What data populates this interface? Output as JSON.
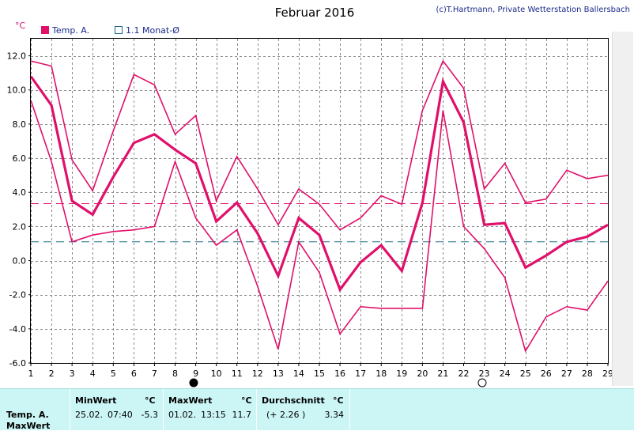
{
  "header": {
    "title": "Februar 2016",
    "copyright": "(c)T.Hartmann, Private Wetterstation Ballersbach",
    "unit": "°C"
  },
  "legend": {
    "items": [
      {
        "label": "Temp. A.",
        "color": "#e0106a",
        "marker": "filled-square"
      },
      {
        "label": "1.1 Monat-Ø",
        "color": "#1a6a8a",
        "marker": "hollow-square"
      }
    ]
  },
  "chart_data": {
    "type": "line",
    "title": "Februar 2016",
    "ylabel": "°C",
    "x": [
      1,
      2,
      3,
      4,
      5,
      6,
      7,
      8,
      9,
      10,
      11,
      12,
      13,
      14,
      15,
      16,
      17,
      18,
      19,
      20,
      21,
      22,
      23,
      24,
      25,
      26,
      27,
      28,
      29
    ],
    "xlim": [
      1,
      29
    ],
    "ylim": [
      -6,
      13
    ],
    "yticks": [
      -6.0,
      -4.0,
      -2.0,
      0.0,
      2.0,
      4.0,
      6.0,
      8.0,
      10.0,
      12.0
    ],
    "ytick_labels": [
      "-6.0",
      "-4.0",
      "-2.0",
      "0.0",
      "2.0",
      "4.0",
      "6.0",
      "8.0",
      "10.0",
      "12.0"
    ],
    "grid": true,
    "series": [
      {
        "kind": "max",
        "color": "#e0106a",
        "values": [
          11.7,
          11.4,
          5.9,
          4.1,
          7.6,
          10.9,
          10.3,
          7.4,
          8.5,
          3.5,
          6.1,
          4.2,
          2.1,
          4.2,
          3.3,
          1.8,
          2.5,
          3.8,
          3.3,
          8.8,
          11.7,
          10.1,
          4.2,
          5.7,
          3.4,
          3.6,
          5.3,
          4.8,
          5.0
        ]
      },
      {
        "name": "Temp. A.",
        "kind": "avg",
        "color": "#e0106a",
        "values": [
          10.8,
          9.1,
          3.5,
          2.7,
          4.9,
          6.9,
          7.4,
          6.5,
          5.7,
          2.3,
          3.4,
          1.6,
          -0.9,
          2.5,
          1.5,
          -1.7,
          -0.1,
          0.9,
          -0.6,
          3.4,
          10.5,
          8.1,
          2.1,
          2.2,
          -0.4,
          0.3,
          1.1,
          1.4,
          2.1
        ]
      },
      {
        "kind": "min",
        "color": "#e0106a",
        "values": [
          9.4,
          5.8,
          1.1,
          1.5,
          1.7,
          1.8,
          2.0,
          5.8,
          2.5,
          0.9,
          1.8,
          -1.5,
          -5.2,
          1.1,
          -0.7,
          -4.3,
          -2.7,
          -2.8,
          -2.8,
          -2.8,
          8.8,
          2.0,
          0.7,
          -1.0,
          -5.3,
          -3.3,
          -2.7,
          -2.9,
          -1.2
        ]
      }
    ],
    "reference_lines": [
      {
        "label": "1.1 Monat-Ø",
        "value": 1.1,
        "color": "#1a6a8a",
        "dash": true
      },
      {
        "label": "Durchschnitt",
        "value": 3.34,
        "color": "#e0106a",
        "dash": true
      }
    ],
    "markers": [
      {
        "x": 8.9,
        "symbol": "full-moon",
        "fill": "#000000"
      },
      {
        "x": 22.9,
        "symbol": "new-moon",
        "fill": "#ffffff"
      }
    ]
  },
  "stats": {
    "row_label": "Temp. A.",
    "row_label2": "MaxWert",
    "min": {
      "header": "MinWert",
      "unit": "°C",
      "date": "25.02.",
      "time": "07:40",
      "value": "-5.3"
    },
    "max": {
      "header": "MaxWert",
      "unit": "°C",
      "date": "01.02.",
      "time": "13:15",
      "value": "11.7"
    },
    "avg": {
      "header": "Durchschnitt",
      "unit": "°C",
      "delta": "(+ 2.26 )",
      "value": "3.34"
    }
  }
}
